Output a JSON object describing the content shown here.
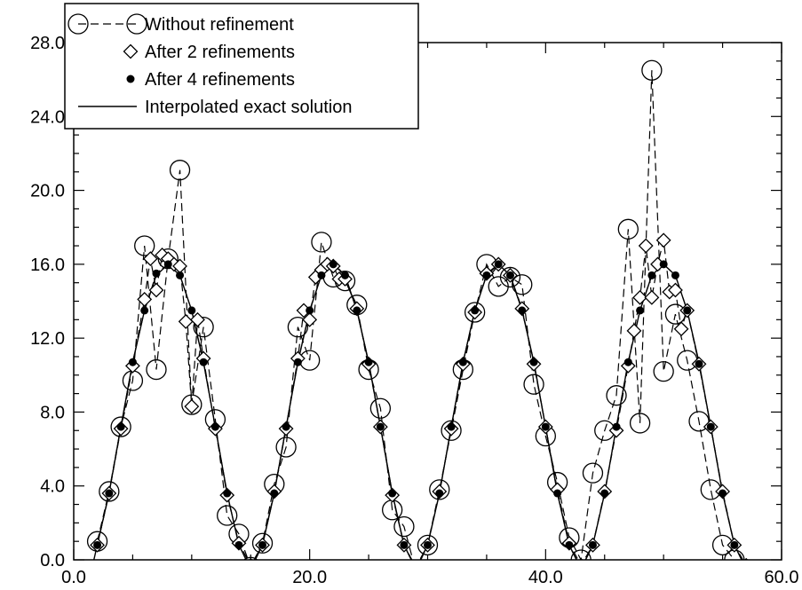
{
  "chart_data": {
    "type": "line",
    "title": "",
    "xlabel": "",
    "ylabel": "",
    "xlim": [
      0,
      60
    ],
    "ylim": [
      0,
      28
    ],
    "x_ticks": [
      "0.0",
      "20.0",
      "40.0",
      "60.0"
    ],
    "y_ticks": [
      "0.0",
      "4.0",
      "8.0",
      "12.0",
      "16.0",
      "20.0",
      "24.0",
      "28.0"
    ],
    "grid": false,
    "legend_position": "top-left",
    "series": [
      {
        "name": "Without refinement",
        "marker": "open-circle",
        "line": "dashed",
        "x": [
          2,
          3,
          4,
          5,
          6,
          7,
          8,
          9,
          10,
          11,
          12,
          13,
          14,
          15,
          16,
          17,
          18,
          19,
          20,
          21,
          22,
          23,
          24,
          25,
          26,
          27,
          28,
          29,
          30,
          31,
          32,
          33,
          34,
          35,
          36,
          37,
          38,
          39,
          40,
          41,
          42,
          43,
          44,
          45,
          46,
          47,
          48,
          49,
          50,
          51,
          52,
          53,
          54,
          55,
          56,
          57
        ],
        "y": [
          1.0,
          3.7,
          7.2,
          9.7,
          17.0,
          10.3,
          16.3,
          21.1,
          8.4,
          12.6,
          7.6,
          2.4,
          1.4,
          -0.4,
          0.9,
          4.1,
          6.1,
          12.6,
          10.8,
          17.2,
          15.3,
          15.1,
          13.8,
          10.3,
          8.2,
          2.7,
          1.8,
          -0.6,
          0.8,
          3.8,
          7.0,
          10.3,
          13.4,
          16.0,
          14.8,
          15.3,
          14.9,
          9.5,
          6.7,
          4.2,
          1.2,
          0.0,
          4.7,
          7.0,
          8.9,
          17.9,
          7.4,
          26.5,
          10.2,
          13.3,
          10.8,
          7.5,
          3.8,
          0.8,
          0.0,
          -0.6
        ]
      },
      {
        "name": "After 2 refinements",
        "marker": "open-diamond",
        "line": "dashed",
        "x": [
          2,
          3,
          4,
          5,
          6,
          6.5,
          7,
          7.5,
          8,
          8.5,
          9,
          9.5,
          10,
          10.5,
          11,
          12,
          13,
          14,
          15,
          16,
          17,
          18,
          19,
          19.5,
          20,
          20.5,
          21,
          21.5,
          22,
          22.5,
          23,
          24,
          25,
          26,
          27,
          28,
          29,
          30,
          31,
          32,
          33,
          34,
          35,
          36,
          37,
          38,
          39,
          40,
          41,
          42,
          43,
          44,
          45,
          46,
          47,
          47.5,
          48,
          48.5,
          49,
          49.5,
          50,
          50.5,
          51,
          51.5,
          52,
          53,
          54,
          55,
          56,
          57
        ],
        "y": [
          0.8,
          3.6,
          7.1,
          10.5,
          14.1,
          16.3,
          14.6,
          16.5,
          16.3,
          16.0,
          15.9,
          12.9,
          8.3,
          13.0,
          10.9,
          7.1,
          3.5,
          0.9,
          -0.3,
          0.8,
          3.7,
          7.1,
          10.9,
          13.5,
          13.0,
          15.3,
          15.7,
          16.0,
          15.9,
          15.2,
          15.2,
          13.6,
          10.6,
          7.2,
          3.5,
          0.8,
          -0.4,
          0.8,
          3.7,
          7.1,
          10.6,
          13.4,
          15.5,
          16.0,
          15.4,
          13.6,
          10.6,
          7.2,
          3.8,
          0.9,
          -0.3,
          0.8,
          3.7,
          7.0,
          10.5,
          12.4,
          14.2,
          17.0,
          14.2,
          16.0,
          17.3,
          14.5,
          14.6,
          12.5,
          13.5,
          10.6,
          7.2,
          3.7,
          0.8,
          -0.3
        ]
      },
      {
        "name": "After 4 refinements",
        "marker": "filled-circle",
        "line": "dashed",
        "x": [
          2,
          3,
          4,
          5,
          6,
          7,
          8,
          9,
          10,
          11,
          12,
          13,
          14,
          15,
          16,
          17,
          18,
          19,
          20,
          21,
          22,
          23,
          24,
          25,
          26,
          27,
          28,
          29,
          30,
          31,
          32,
          33,
          34,
          35,
          36,
          37,
          38,
          39,
          40,
          41,
          42,
          43,
          44,
          45,
          46,
          47,
          48,
          49,
          50,
          51,
          52,
          53,
          54,
          55,
          56,
          57
        ],
        "y": [
          0.8,
          3.6,
          7.2,
          10.7,
          13.5,
          15.5,
          16.0,
          15.4,
          13.5,
          10.7,
          7.2,
          3.6,
          0.8,
          -0.5,
          0.8,
          3.6,
          7.2,
          10.7,
          13.5,
          15.4,
          16.0,
          15.4,
          13.5,
          10.7,
          7.2,
          3.6,
          0.8,
          -0.5,
          0.8,
          3.6,
          7.2,
          10.7,
          13.5,
          15.4,
          16.0,
          15.4,
          13.5,
          10.7,
          7.2,
          3.6,
          0.8,
          -0.5,
          0.8,
          3.6,
          7.2,
          10.7,
          13.5,
          15.4,
          16.0,
          15.4,
          13.5,
          10.6,
          7.2,
          3.6,
          0.8,
          -0.5
        ]
      },
      {
        "name": "Interpolated exact solution",
        "marker": "none",
        "line": "solid",
        "x": [
          1.6,
          3,
          4,
          5,
          6,
          7,
          8,
          9,
          10,
          11,
          12,
          13,
          14,
          15,
          16,
          17,
          18,
          19,
          20,
          21,
          22,
          23,
          24,
          25,
          26,
          27,
          28,
          29,
          30,
          31,
          32,
          33,
          34,
          35,
          36,
          37,
          38,
          39,
          40,
          41,
          42,
          43,
          44,
          45,
          46,
          47,
          48,
          49,
          50,
          51,
          52,
          53,
          54,
          55,
          56,
          57
        ],
        "y": [
          -0.3,
          3.6,
          7.2,
          10.7,
          13.5,
          15.4,
          16.0,
          15.4,
          13.5,
          10.7,
          7.2,
          3.6,
          0.8,
          -0.5,
          0.8,
          3.6,
          7.2,
          10.7,
          13.5,
          15.4,
          16.0,
          15.4,
          13.5,
          10.7,
          7.2,
          3.6,
          0.8,
          -0.5,
          0.8,
          3.6,
          7.2,
          10.7,
          13.5,
          15.4,
          16.0,
          15.4,
          13.5,
          10.7,
          7.2,
          3.6,
          0.8,
          -0.5,
          0.8,
          3.6,
          7.2,
          10.7,
          13.5,
          15.4,
          16.0,
          15.4,
          13.5,
          10.7,
          7.2,
          3.6,
          0.8,
          -0.5
        ]
      }
    ]
  }
}
